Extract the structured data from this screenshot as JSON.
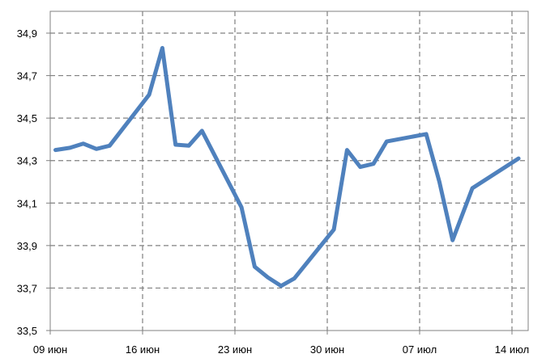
{
  "chart_data": {
    "type": "line",
    "title": "",
    "xlabel": "",
    "ylabel": "",
    "ylim": [
      33.5,
      34.9
    ],
    "x_ticks": [
      {
        "label": "09 июн",
        "day": 0
      },
      {
        "label": "16 июн",
        "day": 7
      },
      {
        "label": "23 июн",
        "day": 14
      },
      {
        "label": "30 июн",
        "day": 21
      },
      {
        "label": "07 июл",
        "day": 28
      },
      {
        "label": "14 июл",
        "day": 35
      }
    ],
    "y_ticks": [
      {
        "label": "33,5",
        "value": 33.5
      },
      {
        "label": "33,7",
        "value": 33.7
      },
      {
        "label": "33,9",
        "value": 33.9
      },
      {
        "label": "34,1",
        "value": 34.1
      },
      {
        "label": "34,3",
        "value": 34.3
      },
      {
        "label": "34,5",
        "value": 34.5
      },
      {
        "label": "34,7",
        "value": 34.7
      },
      {
        "label": "34,9",
        "value": 34.9
      }
    ],
    "grid": true,
    "series": [
      {
        "color": "#4f81bd",
        "points": [
          {
            "day": 0.4,
            "value": 34.35
          },
          {
            "day": 1.5,
            "value": 34.36
          },
          {
            "day": 2.5,
            "value": 34.38
          },
          {
            "day": 3.5,
            "value": 34.355
          },
          {
            "day": 4.5,
            "value": 34.37
          },
          {
            "day": 7.5,
            "value": 34.61
          },
          {
            "day": 8.5,
            "value": 34.83
          },
          {
            "day": 9.5,
            "value": 34.375
          },
          {
            "day": 10.5,
            "value": 34.37
          },
          {
            "day": 11.5,
            "value": 34.44
          },
          {
            "day": 14.5,
            "value": 34.08
          },
          {
            "day": 15.5,
            "value": 33.8
          },
          {
            "day": 16.5,
            "value": 33.75
          },
          {
            "day": 17.5,
            "value": 33.71
          },
          {
            "day": 18.5,
            "value": 33.745
          },
          {
            "day": 21.5,
            "value": 33.975
          },
          {
            "day": 22.5,
            "value": 34.35
          },
          {
            "day": 23.5,
            "value": 34.27
          },
          {
            "day": 24.5,
            "value": 34.285
          },
          {
            "day": 25.5,
            "value": 34.39
          },
          {
            "day": 28.5,
            "value": 34.425
          },
          {
            "day": 29.5,
            "value": 34.2
          },
          {
            "day": 30.5,
            "value": 33.925
          },
          {
            "day": 32.0,
            "value": 34.17
          },
          {
            "day": 35.5,
            "value": 34.31
          }
        ]
      }
    ],
    "legend": "none"
  }
}
